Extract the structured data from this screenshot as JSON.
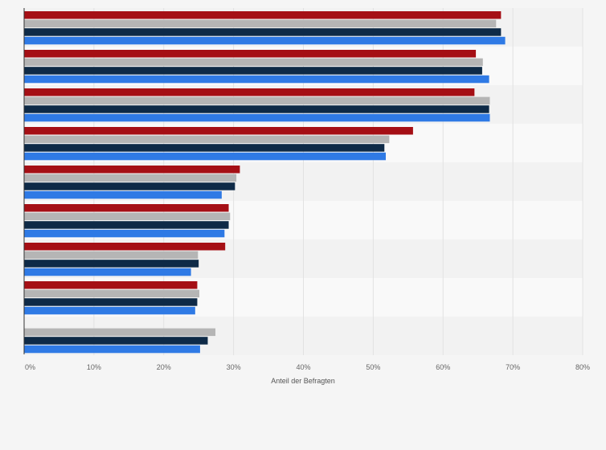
{
  "chart_data": {
    "type": "bar",
    "orientation": "horizontal",
    "xlabel": "Anteil der Befragten",
    "xlim": [
      0,
      80
    ],
    "xticks": [
      "0%",
      "10%",
      "20%",
      "30%",
      "40%",
      "50%",
      "60%",
      "70%",
      "80%"
    ],
    "grid": true,
    "legend": "none",
    "group_count": 9,
    "series": [
      {
        "color": "#a50f15",
        "values": [
          68.3,
          64.7,
          64.5,
          55.7,
          30.9,
          29.3,
          28.8,
          24.8,
          null
        ]
      },
      {
        "color": "#b5b5b5",
        "values": [
          67.6,
          65.7,
          66.7,
          52.3,
          30.4,
          29.5,
          24.9,
          25.1,
          27.4
        ]
      },
      {
        "color": "#0e2a47",
        "values": [
          68.3,
          65.6,
          66.6,
          51.6,
          30.2,
          29.3,
          25.0,
          24.8,
          26.3
        ]
      },
      {
        "color": "#2f7ae5",
        "values": [
          68.9,
          66.6,
          66.7,
          51.8,
          28.3,
          28.7,
          23.9,
          24.5,
          25.2
        ]
      }
    ]
  }
}
